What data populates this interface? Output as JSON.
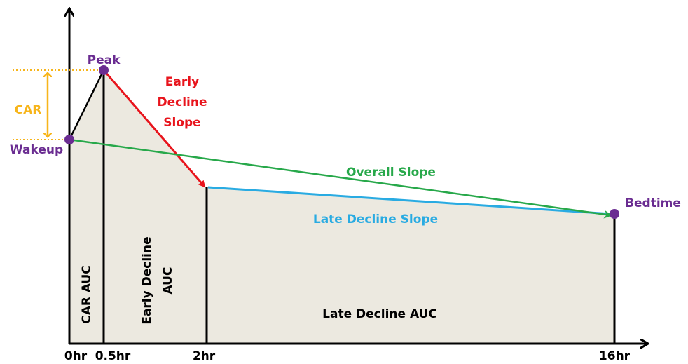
{
  "points": [
    {
      "label": "Peak"
    },
    {
      "label": "Wakeup"
    },
    {
      "label": "Bedtime"
    }
  ],
  "car": {
    "label": "CAR"
  },
  "slopes": {
    "early": {
      "lines": [
        "Early",
        "Decline",
        "Slope"
      ]
    },
    "overall": {
      "label": "Overall Slope"
    },
    "late": {
      "label": "Late Decline Slope"
    }
  },
  "aucs": {
    "car": {
      "label": "CAR AUC"
    },
    "early": {
      "lines": [
        "Early Decline",
        "AUC"
      ]
    },
    "late": {
      "label": "Late Decline AUC"
    }
  },
  "x_ticks": [
    "0hr",
    "0.5hr",
    "2hr",
    "16hr"
  ]
}
